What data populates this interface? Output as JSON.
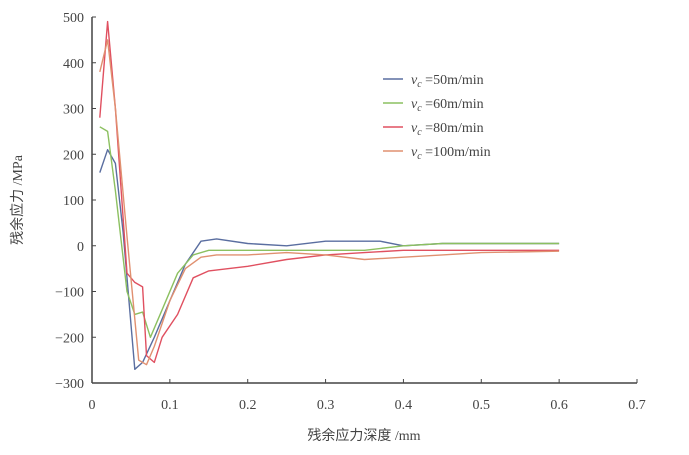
{
  "chart_data": {
    "type": "line",
    "title": "",
    "xlabel": "残余应力深度 /mm",
    "ylabel": "残余应力 /MPa",
    "xlim": [
      0,
      0.7
    ],
    "ylim": [
      -300,
      500
    ],
    "xticks": [
      "0",
      "0.1",
      "0.2",
      "0.3",
      "0.4",
      "0.5",
      "0.6",
      "0.7"
    ],
    "yticks": [
      "500",
      "400",
      "300",
      "200",
      "100",
      "0",
      "-100",
      "-200",
      "-300"
    ],
    "grid": false,
    "legend_position": "upper right",
    "series": [
      {
        "name": "vc=50m/min",
        "color": "#5a6ea0",
        "x": [
          0.01,
          0.02,
          0.03,
          0.04,
          0.055,
          0.065,
          0.08,
          0.1,
          0.12,
          0.14,
          0.16,
          0.2,
          0.25,
          0.3,
          0.33,
          0.37,
          0.4,
          0.45,
          0.5,
          0.6
        ],
        "y": [
          160,
          210,
          180,
          30,
          -270,
          -255,
          -200,
          -120,
          -40,
          10,
          15,
          5,
          0,
          10,
          10,
          10,
          0,
          5,
          5,
          5
        ]
      },
      {
        "name": "vc=60m/min",
        "color": "#8cc060",
        "x": [
          0.01,
          0.02,
          0.03,
          0.045,
          0.055,
          0.065,
          0.075,
          0.09,
          0.11,
          0.13,
          0.15,
          0.2,
          0.25,
          0.3,
          0.35,
          0.4,
          0.45,
          0.5,
          0.6
        ],
        "y": [
          260,
          250,
          120,
          -100,
          -150,
          -145,
          -200,
          -140,
          -60,
          -20,
          -10,
          -10,
          -10,
          -10,
          -10,
          0,
          5,
          5,
          5
        ]
      },
      {
        "name": "vc=80m/min",
        "color": "#e05060",
        "x": [
          0.01,
          0.02,
          0.03,
          0.045,
          0.055,
          0.065,
          0.07,
          0.08,
          0.09,
          0.11,
          0.13,
          0.15,
          0.2,
          0.25,
          0.3,
          0.35,
          0.4,
          0.45,
          0.5,
          0.6
        ],
        "y": [
          280,
          490,
          300,
          -60,
          -80,
          -90,
          -240,
          -255,
          -200,
          -150,
          -70,
          -55,
          -45,
          -30,
          -20,
          -15,
          -10,
          -10,
          -10,
          -10
        ]
      },
      {
        "name": "vc=100m/min",
        "color": "#e09070",
        "x": [
          0.01,
          0.02,
          0.03,
          0.045,
          0.06,
          0.07,
          0.08,
          0.1,
          0.12,
          0.14,
          0.16,
          0.2,
          0.25,
          0.3,
          0.35,
          0.4,
          0.45,
          0.5,
          0.6
        ],
        "y": [
          380,
          450,
          300,
          20,
          -250,
          -260,
          -220,
          -120,
          -50,
          -25,
          -20,
          -20,
          -15,
          -20,
          -30,
          -25,
          -20,
          -15,
          -12
        ]
      }
    ]
  },
  "legend": {
    "items": [
      {
        "label": "vc =50m/min",
        "color": "#5a6ea0"
      },
      {
        "label": "vc =60m/min",
        "color": "#8cc060"
      },
      {
        "label": "vc =80m/min",
        "color": "#e05060"
      },
      {
        "label": "vc =100m/min",
        "color": "#e09070"
      }
    ]
  }
}
